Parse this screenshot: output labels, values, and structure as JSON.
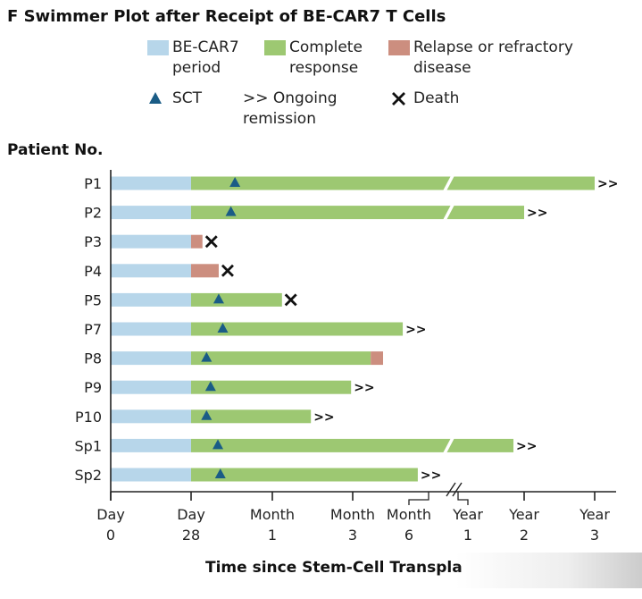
{
  "chart_data": {
    "type": "swimmer",
    "title": "F  Swimmer Plot after Receipt of BE-CAR7 T Cells",
    "ylabel": "Patient No.",
    "xlabel": "Time since Stem-Cell Transpla",
    "x_unit": "tick index (0=Day 0 ... 7=Year 3, nonlinear axis)",
    "ticks": [
      [
        "Day",
        "0"
      ],
      [
        "Day",
        "28"
      ],
      [
        "Month",
        "1"
      ],
      [
        "Month",
        "3"
      ],
      [
        "Month",
        "6"
      ],
      [
        "Year",
        "1"
      ],
      [
        "Year",
        "2"
      ],
      [
        "Year",
        "3"
      ]
    ],
    "axis_break_after_tick": 4,
    "legend": {
      "becar7": "BE-CAR7\nperiod",
      "cr": "Complete\nresponse",
      "relapse": "Relapse or refractory\ndisease",
      "sct": "SCT",
      "ongoing": ">> Ongoing\nremission",
      "death": "Death"
    },
    "colors": {
      "becar7": "#b7d6ea",
      "cr": "#9dc872",
      "relapse": "#cc8e7f",
      "sct": "#1a5c86",
      "death": "#111111"
    },
    "patients": [
      {
        "id": "P1",
        "cr_end": 7,
        "relapse_end": null,
        "sct": 1.54,
        "death": null,
        "ongoing": true,
        "break": true
      },
      {
        "id": "P2",
        "cr_end": 6,
        "relapse_end": null,
        "sct": 1.49,
        "death": null,
        "ongoing": true,
        "break": true
      },
      {
        "id": "P3",
        "cr_end": 1,
        "relapse_end": 1.14,
        "sct": null,
        "death": 1.25,
        "ongoing": false,
        "break": false
      },
      {
        "id": "P4",
        "cr_end": 1,
        "relapse_end": 1.34,
        "sct": null,
        "death": 1.45,
        "ongoing": false,
        "break": false
      },
      {
        "id": "P5",
        "cr_end": 2.12,
        "relapse_end": null,
        "sct": 1.34,
        "death": 2.23,
        "ongoing": false,
        "break": false
      },
      {
        "id": "P7",
        "cr_end": 3.89,
        "relapse_end": null,
        "sct": 1.39,
        "death": null,
        "ongoing": true,
        "break": false
      },
      {
        "id": "P8",
        "cr_end": 3.32,
        "relapse_end": 3.54,
        "sct": 1.19,
        "death": null,
        "ongoing": false,
        "break": false
      },
      {
        "id": "P9",
        "cr_end": 2.98,
        "relapse_end": null,
        "sct": 1.24,
        "death": null,
        "ongoing": true,
        "break": false
      },
      {
        "id": "P10",
        "cr_end": 2.48,
        "relapse_end": null,
        "sct": 1.19,
        "death": null,
        "ongoing": true,
        "break": false
      },
      {
        "id": "Sp1",
        "cr_end": 5.81,
        "relapse_end": null,
        "sct": 1.33,
        "death": null,
        "ongoing": true,
        "break": true
      },
      {
        "id": "Sp2",
        "cr_end": 4.15,
        "relapse_end": null,
        "sct": 1.36,
        "death": null,
        "ongoing": true,
        "break": false
      }
    ]
  }
}
